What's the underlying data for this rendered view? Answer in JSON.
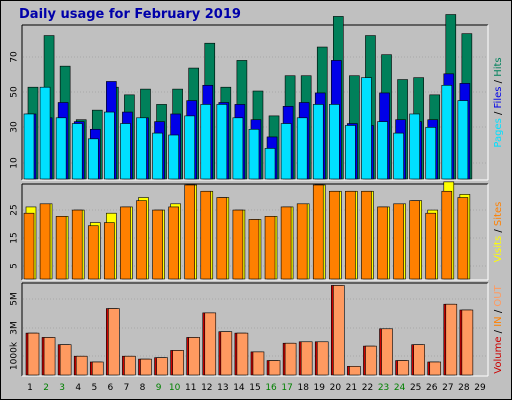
{
  "chart_data": {
    "type": "bar",
    "title": "Daily usage for February 2019",
    "days": [
      "1",
      "2",
      "3",
      "4",
      "5",
      "6",
      "7",
      "8",
      "9",
      "10",
      "11",
      "12",
      "13",
      "14",
      "15",
      "16",
      "17",
      "18",
      "19",
      "20",
      "21",
      "22",
      "23",
      "24",
      "25",
      "26",
      "27",
      "28",
      "29"
    ],
    "weekend_days": [
      "2",
      "3",
      "9",
      "10",
      "16",
      "17",
      "23",
      "24"
    ],
    "colors": {
      "hits": "#00805a",
      "files": "#0000e8",
      "pages": "#00e0ff",
      "visits": "#ffff00",
      "sites": "#ff8000",
      "volume": "#cc0000",
      "in": "#ff8000",
      "out": "#ff9a60",
      "weekend_label": "#008000"
    },
    "panels": [
      {
        "name": "traffic",
        "ylim": [
          0,
          80
        ],
        "yticks": [
          "70",
          "50",
          "30",
          "10"
        ],
        "series": [
          {
            "key": "hits",
            "values": [
              48,
              75,
              59,
              31,
              36,
              48,
              44,
              47,
              39,
              47,
              58,
              71,
              48,
              62,
              46,
              33,
              54,
              54,
              69,
              85,
              54,
              75,
              65,
              52,
              53,
              44,
              86,
              76,
              0
            ]
          },
          {
            "key": "files",
            "values": [
              34,
              32,
              40,
              30,
              26,
              51,
              35,
              32,
              30,
              34,
              41,
              49,
              40,
              39,
              31,
              22,
              38,
              40,
              45,
              62,
              29,
              28,
              45,
              31,
              30,
              31,
              55,
              50,
              0
            ]
          },
          {
            "key": "pages",
            "values": [
              34,
              48,
              32,
              29,
              21,
              35,
              29,
              32,
              24,
              23,
              33,
              39,
              39,
              32,
              26,
              16,
              29,
              32,
              39,
              39,
              28,
              53,
              30,
              24,
              34,
              27,
              49,
              41,
              0
            ]
          }
        ],
        "side_label": [
          {
            "text": "Pages",
            "key": "pages"
          },
          {
            "text": " / ",
            "key": null
          },
          {
            "text": "Files",
            "key": "files"
          },
          {
            "text": " / ",
            "key": null
          },
          {
            "text": "Hits",
            "key": "hits"
          }
        ]
      },
      {
        "name": "visitors",
        "ylim": [
          0,
          30
        ],
        "yticks": [
          "25",
          "15",
          "5"
        ],
        "series": [
          {
            "key": "visits",
            "values": [
              23,
              24,
              20,
              22,
              18,
              21,
              23,
              26,
              22,
              24,
              30,
              28,
              26,
              22,
              19,
              20,
              23,
              24,
              30,
              28,
              28,
              28,
              23,
              24,
              25,
              22,
              31,
              27,
              0
            ]
          },
          {
            "key": "sites",
            "values": [
              21,
              24,
              20,
              22,
              17,
              18,
              23,
              25,
              22,
              23,
              30,
              28,
              26,
              22,
              19,
              20,
              23,
              24,
              30,
              28,
              28,
              28,
              23,
              24,
              25,
              21,
              28,
              26,
              0
            ]
          }
        ],
        "side_label": [
          {
            "text": "Visits",
            "key": "visits"
          },
          {
            "text": " / ",
            "key": null
          },
          {
            "text": "Sites",
            "key": "sites"
          }
        ]
      },
      {
        "name": "volume",
        "ylim": [
          0,
          6.3
        ],
        "yticks": [
          "5M",
          "3M",
          "1000k"
        ],
        "series": [
          {
            "key": "volume",
            "values": [
              2.9,
              2.6,
              2.1,
              1.3,
              0.9,
              4.6,
              1.3,
              1.1,
              1.2,
              1.7,
              2.6,
              4.3,
              3.0,
              2.9,
              1.6,
              1.0,
              2.2,
              2.3,
              2.3,
              6.2,
              0.6,
              2.0,
              3.2,
              1.0,
              2.1,
              0.9,
              4.9,
              4.5,
              0
            ]
          },
          {
            "key": "in",
            "values": [
              0,
              0,
              0,
              0,
              0,
              0,
              0,
              0,
              0,
              0,
              0,
              0,
              0,
              0,
              0,
              0,
              0,
              0,
              0,
              0,
              0,
              0,
              0,
              0,
              0,
              0,
              0,
              0,
              0
            ]
          },
          {
            "key": "out",
            "values": [
              2.9,
              2.6,
              2.1,
              1.3,
              0.9,
              4.6,
              1.3,
              1.1,
              1.2,
              1.7,
              2.6,
              4.3,
              3.0,
              2.9,
              1.6,
              1.0,
              2.2,
              2.3,
              2.3,
              6.2,
              0.6,
              2.0,
              3.2,
              1.0,
              2.1,
              0.9,
              4.9,
              4.5,
              0
            ]
          }
        ],
        "side_label": [
          {
            "text": "Volume",
            "key": "volume"
          },
          {
            "text": " / ",
            "key": null
          },
          {
            "text": "IN",
            "key": "in"
          },
          {
            "text": " / ",
            "key": null
          },
          {
            "text": "OUT",
            "key": "out"
          }
        ]
      }
    ]
  }
}
